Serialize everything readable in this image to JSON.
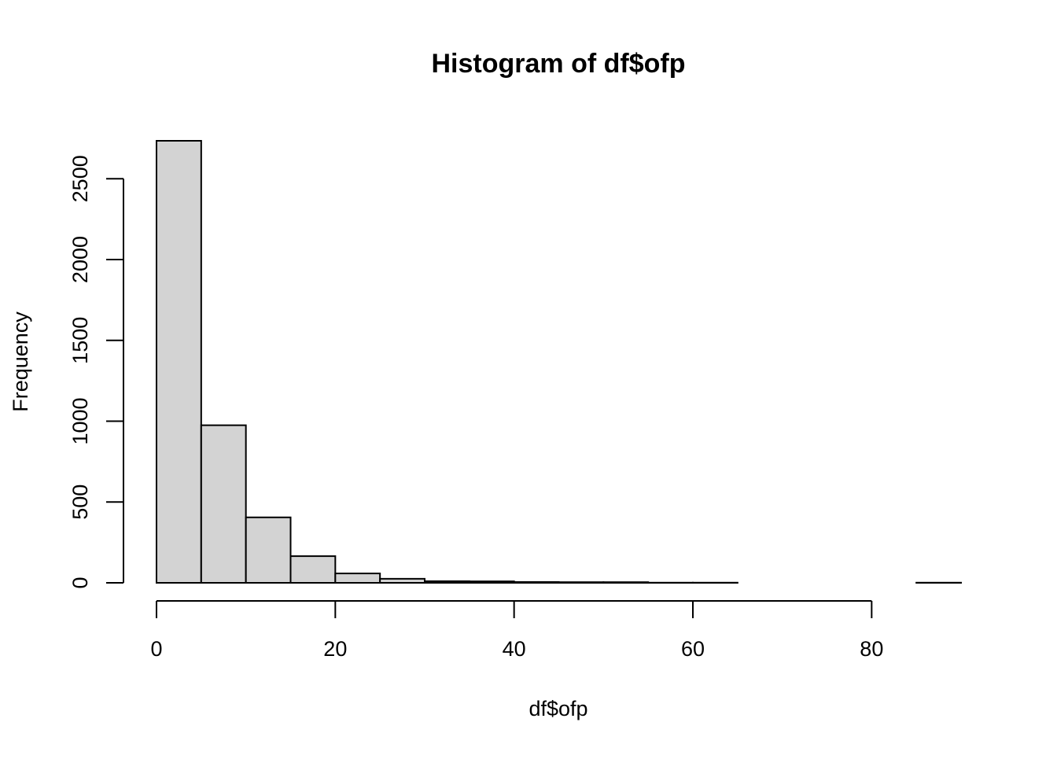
{
  "chart_data": {
    "type": "bar",
    "title": "Histogram of df$ofp",
    "xlabel": "df$ofp",
    "ylabel": "Frequency",
    "bins": [
      {
        "start": 0,
        "end": 5,
        "count": 2735
      },
      {
        "start": 5,
        "end": 10,
        "count": 975
      },
      {
        "start": 10,
        "end": 15,
        "count": 405
      },
      {
        "start": 15,
        "end": 20,
        "count": 165
      },
      {
        "start": 20,
        "end": 25,
        "count": 58
      },
      {
        "start": 25,
        "end": 30,
        "count": 25
      },
      {
        "start": 30,
        "end": 35,
        "count": 10
      },
      {
        "start": 35,
        "end": 40,
        "count": 9
      },
      {
        "start": 40,
        "end": 45,
        "count": 5
      },
      {
        "start": 45,
        "end": 50,
        "count": 4
      },
      {
        "start": 50,
        "end": 55,
        "count": 4
      },
      {
        "start": 55,
        "end": 60,
        "count": 1
      },
      {
        "start": 60,
        "end": 65,
        "count": 1
      },
      {
        "start": 65,
        "end": 70,
        "count": 0
      },
      {
        "start": 70,
        "end": 75,
        "count": 0
      },
      {
        "start": 75,
        "end": 80,
        "count": 0
      },
      {
        "start": 80,
        "end": 85,
        "count": 0
      },
      {
        "start": 85,
        "end": 90,
        "count": 1
      }
    ],
    "xlim": [
      0,
      90
    ],
    "ylim": [
      0,
      2735
    ],
    "x_ticks": [
      0,
      20,
      40,
      60,
      80
    ],
    "y_ticks": [
      0,
      500,
      1000,
      1500,
      2000,
      2500
    ],
    "grid": false,
    "bar_fill": "#d3d3d3",
    "bar_stroke": "#000000"
  }
}
